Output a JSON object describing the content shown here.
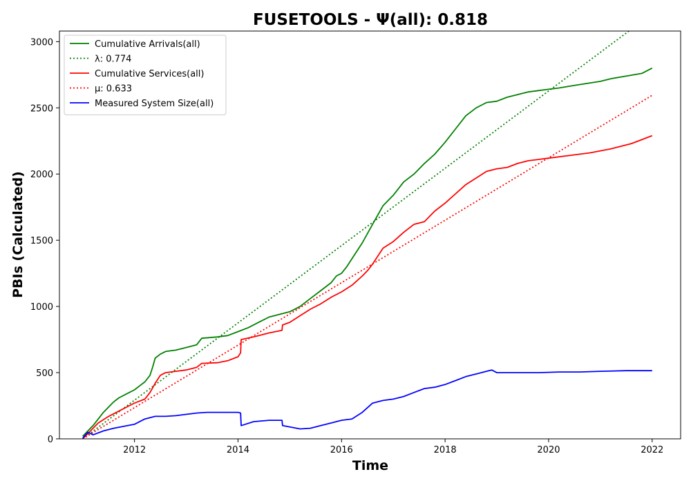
{
  "chart_data": {
    "type": "line",
    "title": "FUSETOOLS -  Ψ(all): 0.818",
    "xlabel": "Time",
    "ylabel": "PBIs (Calculated)",
    "xlim": [
      2010.55,
      2022.55
    ],
    "ylim": [
      0,
      3080
    ],
    "x_ticks": [
      2012,
      2014,
      2016,
      2018,
      2020,
      2022
    ],
    "x_tick_labels": [
      "2012",
      "2014",
      "2016",
      "2018",
      "2020",
      "2022"
    ],
    "y_ticks": [
      0,
      500,
      1000,
      1500,
      2000,
      2500,
      3000
    ],
    "y_tick_labels": [
      "0",
      "500",
      "1000",
      "1500",
      "2000",
      "2500",
      "3000"
    ],
    "grid": false,
    "legend_position": "top-left",
    "series": [
      {
        "name": "Cumulative Arrivals(all)",
        "color": "#008000",
        "style": "solid",
        "x": [
          2011.0,
          2011.1,
          2011.2,
          2011.3,
          2011.4,
          2011.5,
          2011.6,
          2011.7,
          2011.8,
          2011.9,
          2012.0,
          2012.1,
          2012.2,
          2012.3,
          2012.35,
          2012.4,
          2012.5,
          2012.6,
          2012.8,
          2013.0,
          2013.2,
          2013.3,
          2013.6,
          2013.8,
          2014.0,
          2014.2,
          2014.4,
          2014.6,
          2014.8,
          2015.0,
          2015.2,
          2015.4,
          2015.6,
          2015.8,
          2015.9,
          2016.0,
          2016.1,
          2016.2,
          2016.4,
          2016.6,
          2016.8,
          2017.0,
          2017.2,
          2017.4,
          2017.6,
          2017.8,
          2018.0,
          2018.2,
          2018.4,
          2018.6,
          2018.7,
          2018.8,
          2019.0,
          2019.2,
          2019.4,
          2019.6,
          2019.8,
          2020.0,
          2020.2,
          2020.5,
          2021.0,
          2021.2,
          2021.5,
          2021.8,
          2022.0
        ],
        "values": [
          20,
          60,
          100,
          150,
          200,
          240,
          280,
          310,
          330,
          350,
          370,
          400,
          430,
          480,
          540,
          610,
          640,
          660,
          670,
          690,
          710,
          760,
          770,
          780,
          810,
          840,
          880,
          920,
          940,
          960,
          1000,
          1060,
          1120,
          1180,
          1230,
          1250,
          1300,
          1360,
          1480,
          1620,
          1760,
          1840,
          1940,
          2000,
          2080,
          2150,
          2240,
          2340,
          2440,
          2500,
          2520,
          2540,
          2550,
          2580,
          2600,
          2620,
          2630,
          2640,
          2650,
          2670,
          2700,
          2720,
          2740,
          2760,
          2800
        ]
      },
      {
        "name": "λ: 0.774",
        "color": "#008000",
        "style": "dotted",
        "x": [
          2011.0,
          2021.55
        ],
        "values": [
          0,
          3080
        ]
      },
      {
        "name": "Cumulative Services(all)",
        "color": "#ff0000",
        "style": "solid",
        "x": [
          2011.0,
          2011.1,
          2011.2,
          2011.3,
          2011.5,
          2011.7,
          2011.9,
          2012.0,
          2012.2,
          2012.3,
          2012.4,
          2012.5,
          2012.6,
          2012.8,
          2013.0,
          2013.2,
          2013.3,
          2013.6,
          2013.8,
          2014.0,
          2014.05,
          2014.06,
          2014.3,
          2014.6,
          2014.85,
          2014.86,
          2015.0,
          2015.2,
          2015.4,
          2015.6,
          2015.8,
          2016.0,
          2016.2,
          2016.4,
          2016.5,
          2016.6,
          2016.8,
          2017.0,
          2017.2,
          2017.4,
          2017.6,
          2017.8,
          2018.0,
          2018.2,
          2018.4,
          2018.6,
          2018.8,
          2019.0,
          2019.2,
          2019.4,
          2019.6,
          2019.8,
          2020.0,
          2020.4,
          2020.8,
          2021.2,
          2021.6,
          2022.0
        ],
        "values": [
          0,
          40,
          80,
          120,
          170,
          210,
          250,
          270,
          300,
          350,
          420,
          480,
          500,
          510,
          520,
          540,
          570,
          575,
          590,
          620,
          650,
          750,
          770,
          800,
          820,
          860,
          880,
          930,
          980,
          1020,
          1070,
          1110,
          1160,
          1230,
          1270,
          1320,
          1440,
          1490,
          1560,
          1620,
          1640,
          1720,
          1780,
          1850,
          1920,
          1970,
          2020,
          2040,
          2050,
          2080,
          2100,
          2110,
          2120,
          2140,
          2160,
          2190,
          2230,
          2290
        ]
      },
      {
        "name": "μ: 0.633",
        "color": "#ff0000",
        "style": "dotted",
        "x": [
          2011.0,
          2022.0
        ],
        "values": [
          0,
          2595
        ]
      },
      {
        "name": "Measured System Size(all)",
        "color": "#0000ff",
        "style": "solid",
        "x": [
          2011.0,
          2011.1,
          2011.2,
          2011.4,
          2011.6,
          2011.8,
          2012.0,
          2012.2,
          2012.4,
          2012.6,
          2012.8,
          2013.0,
          2013.2,
          2013.4,
          2013.6,
          2013.8,
          2014.0,
          2014.05,
          2014.06,
          2014.3,
          2014.6,
          2014.85,
          2014.86,
          2015.0,
          2015.2,
          2015.4,
          2015.6,
          2015.8,
          2016.0,
          2016.2,
          2016.4,
          2016.6,
          2016.8,
          2017.0,
          2017.2,
          2017.4,
          2017.6,
          2017.8,
          2018.0,
          2018.2,
          2018.4,
          2018.6,
          2018.8,
          2018.9,
          2019.0,
          2019.4,
          2019.8,
          2020.2,
          2020.6,
          2021.0,
          2021.5,
          2022.0
        ],
        "values": [
          5,
          50,
          30,
          60,
          80,
          95,
          110,
          150,
          170,
          170,
          175,
          185,
          195,
          200,
          200,
          200,
          200,
          195,
          100,
          130,
          140,
          140,
          100,
          90,
          75,
          80,
          100,
          120,
          140,
          150,
          200,
          270,
          290,
          300,
          320,
          350,
          380,
          390,
          410,
          440,
          470,
          490,
          510,
          520,
          500,
          500,
          500,
          505,
          505,
          510,
          515,
          515
        ]
      }
    ]
  }
}
